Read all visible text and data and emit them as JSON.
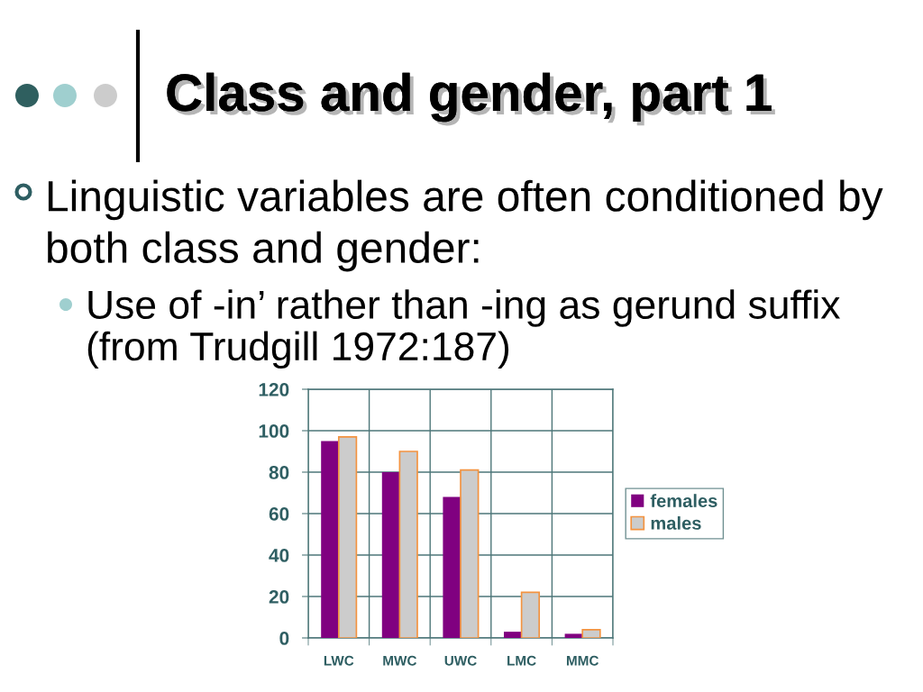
{
  "chart_data": {
    "type": "bar",
    "title": "Class and gender, part 1",
    "subtitle": "Linguistic variables are often conditioned by both class and gender:",
    "annotations": [
      "Use of -in’ rather than -ing as gerund suffix (from Trudgill 1972:187)"
    ],
    "categories": [
      "LWC",
      "MWC",
      "UWC",
      "LMC",
      "MMC"
    ],
    "series": [
      {
        "name": "females",
        "color": "#800080",
        "values": [
          95,
          80,
          68,
          3,
          2
        ]
      },
      {
        "name": "males",
        "color": "#cccccc",
        "values": [
          97,
          90,
          81,
          22,
          4
        ]
      }
    ],
    "ylim": [
      0,
      120
    ],
    "yticks": [
      0,
      20,
      40,
      60,
      80,
      100,
      120
    ],
    "grid": true,
    "legend": "right"
  }
}
